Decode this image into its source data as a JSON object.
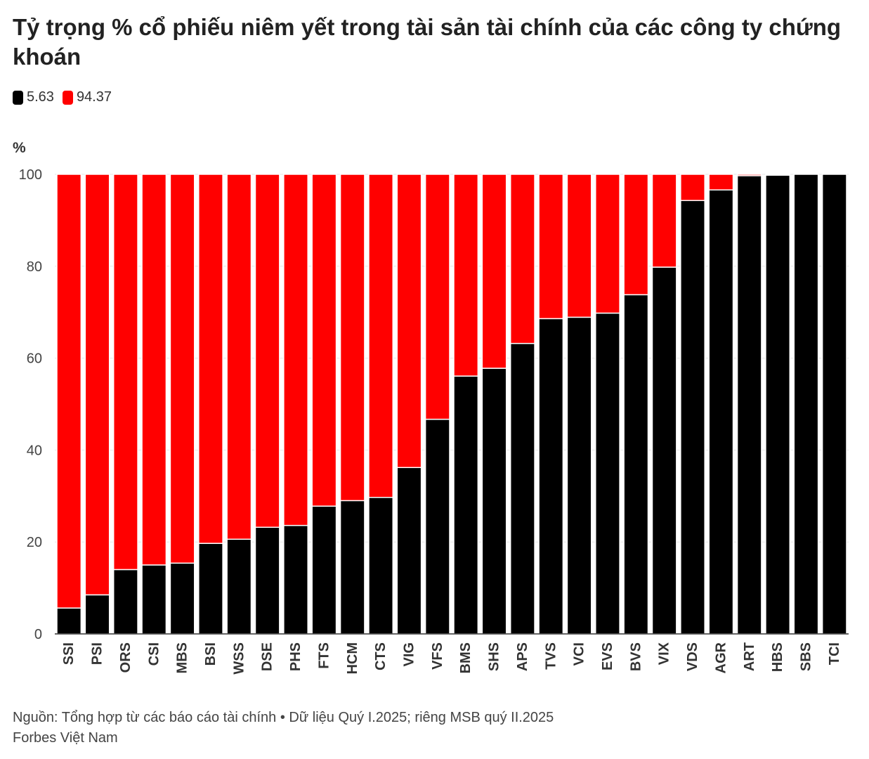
{
  "title": "Tỷ trọng % cổ phiếu niêm yết trong tài sản tài chính của các công ty chứng khoán",
  "legend": [
    {
      "label": "5.63",
      "color": "#000000"
    },
    {
      "label": "94.37",
      "color": "#ff0000"
    }
  ],
  "unit_label": "%",
  "source": "Nguồn: Tổng hợp từ các báo cáo tài chính • Dữ liệu Quý I.2025; riêng MSB quý II.2025",
  "credit": "Forbes Việt Nam",
  "chart_data": {
    "type": "bar",
    "stacked": true,
    "categories": [
      "SSI",
      "PSI",
      "ORS",
      "CSI",
      "MBS",
      "BSI",
      "WSS",
      "DSE",
      "PHS",
      "FTS",
      "HCM",
      "CTS",
      "VIG",
      "VFS",
      "BMS",
      "SHS",
      "APS",
      "TVS",
      "VCI",
      "EVS",
      "BVS",
      "VIX",
      "VDS",
      "AGR",
      "ART",
      "HBS",
      "SBS",
      "TCI"
    ],
    "series": [
      {
        "name": "5.63",
        "color": "#000000",
        "values": [
          5.63,
          8.5,
          14.0,
          15.0,
          15.4,
          19.7,
          20.6,
          23.2,
          23.6,
          27.8,
          29.0,
          29.7,
          36.2,
          46.7,
          56.1,
          57.8,
          63.2,
          68.6,
          68.9,
          69.8,
          73.8,
          79.8,
          94.3,
          96.6,
          99.7,
          99.8,
          100.0,
          100.0
        ]
      },
      {
        "name": "94.37",
        "color": "#ff0000",
        "values": [
          94.37,
          91.5,
          86.0,
          85.0,
          84.6,
          80.3,
          79.4,
          76.8,
          76.4,
          72.2,
          71.0,
          70.3,
          63.8,
          53.3,
          43.9,
          42.2,
          36.8,
          31.4,
          31.1,
          30.2,
          26.2,
          20.2,
          5.7,
          3.4,
          0.3,
          0.2,
          0.0,
          0.0
        ]
      }
    ],
    "ylim": [
      0,
      100
    ],
    "yticks": [
      0,
      20,
      40,
      60,
      80,
      100
    ],
    "grid": true,
    "legend_position": "top-left"
  }
}
